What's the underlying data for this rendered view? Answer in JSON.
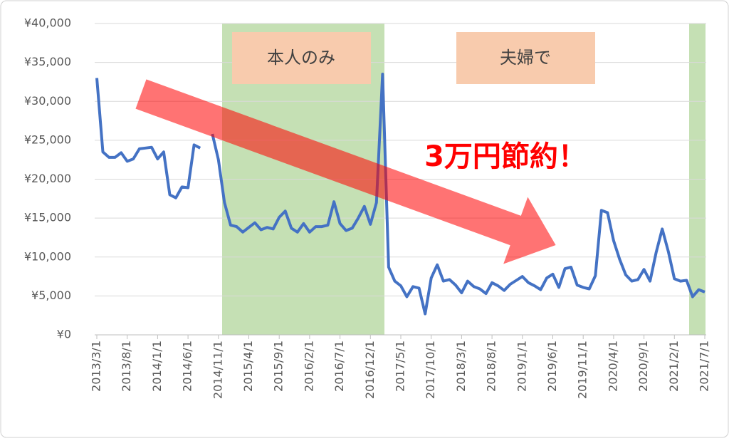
{
  "chart_data": {
    "type": "line",
    "categories": [
      "2013/3/1",
      null,
      null,
      null,
      null,
      "2013/8/1",
      null,
      null,
      null,
      null,
      "2014/1/1",
      null,
      null,
      null,
      null,
      "2014/6/1",
      null,
      null,
      null,
      null,
      "2014/11/1",
      null,
      null,
      null,
      null,
      "2015/4/1",
      null,
      null,
      null,
      null,
      "2015/9/1",
      null,
      null,
      null,
      null,
      "2016/2/1",
      null,
      null,
      null,
      null,
      "2016/7/1",
      null,
      null,
      null,
      null,
      "2016/12/1",
      null,
      null,
      null,
      null,
      "2017/5/1",
      null,
      null,
      null,
      null,
      "2017/10/1",
      null,
      null,
      null,
      null,
      "2018/3/1",
      null,
      null,
      null,
      null,
      "2018/8/1",
      null,
      null,
      null,
      null,
      "2019/1/1",
      null,
      null,
      null,
      null,
      "2019/6/1",
      null,
      null,
      null,
      null,
      "2019/11/1",
      null,
      null,
      null,
      null,
      "2020/4/1",
      null,
      null,
      null,
      null,
      "2020/9/1",
      null,
      null,
      null,
      null,
      "2021/2/1",
      null,
      null,
      null,
      null,
      "2021/7/1"
    ],
    "series": [
      {
        "color": "#4472c4",
        "values": [
          33000,
          23500,
          22800,
          22800,
          23400,
          22300,
          22600,
          23900,
          24000,
          24100,
          22600,
          23500,
          18000,
          17600,
          19000,
          18900,
          24400,
          24000,
          null,
          25800,
          22500,
          17000,
          14100,
          13900,
          13200,
          13800,
          14400,
          13500,
          13800,
          13600,
          15100,
          15900,
          13700,
          13200,
          14300,
          13200,
          13900,
          13900,
          14100,
          17100,
          14300,
          13400,
          13700,
          15000,
          16500,
          14200,
          17000,
          33500,
          8700,
          6900,
          6300,
          4900,
          6200,
          6000,
          2700,
          7300,
          9000,
          6900,
          7100,
          6400,
          5400,
          6900,
          6200,
          5900,
          5300,
          6700,
          6300,
          5700,
          6500,
          7000,
          7500,
          6700,
          6300,
          5800,
          7300,
          7800,
          6100,
          8500,
          8700,
          6400,
          6100,
          5900,
          7600,
          16000,
          15700,
          12100,
          9700,
          7700,
          6900,
          7100,
          8400,
          6900,
          10600,
          13600,
          10700,
          7200,
          6900,
          7000,
          4900,
          5800,
          5500
        ]
      }
    ],
    "ylim": [
      0,
      40000
    ],
    "yticks": [
      {
        "value": 0,
        "label": "¥0"
      },
      {
        "value": 5000,
        "label": "¥5,000"
      },
      {
        "value": 10000,
        "label": "¥10,000"
      },
      {
        "value": 15000,
        "label": "¥15,000"
      },
      {
        "value": 20000,
        "label": "¥20,000"
      },
      {
        "value": 25000,
        "label": "¥25,000"
      },
      {
        "value": 30000,
        "label": "¥30,000"
      },
      {
        "value": 35000,
        "label": "¥35,000"
      },
      {
        "value": 40000,
        "label": "¥40,000"
      }
    ],
    "grid": true,
    "annotations": [
      "本人のみ",
      "夫婦で",
      "3万円節約！"
    ]
  }
}
